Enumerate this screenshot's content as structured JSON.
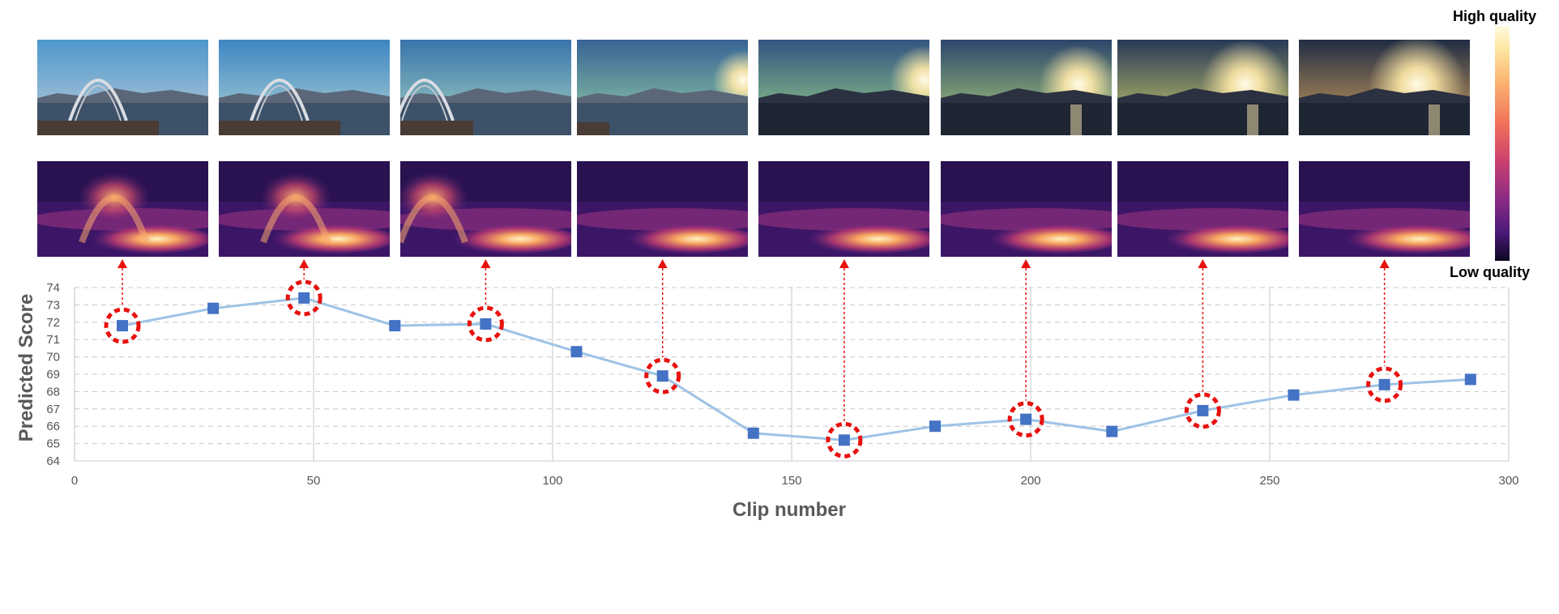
{
  "colorbar": {
    "high_label": "High quality",
    "low_label": "Low quality"
  },
  "chart_data": {
    "type": "line",
    "xlabel": "Clip number",
    "ylabel": "Predicted Score",
    "xlim": [
      0,
      300
    ],
    "ylim": [
      64,
      74
    ],
    "xticks": [
      0,
      50,
      100,
      150,
      200,
      250,
      300
    ],
    "yticks": [
      64,
      65,
      66,
      67,
      68,
      69,
      70,
      71,
      72,
      73,
      74
    ],
    "grid": "horizontal dashed, vertical solid",
    "series": [
      {
        "x": [
          10,
          29,
          48,
          67,
          86,
          105,
          123,
          142,
          161,
          180,
          199,
          217,
          236,
          255,
          274,
          292
        ],
        "y": [
          71.8,
          72.8,
          73.4,
          71.8,
          71.9,
          70.3,
          68.9,
          65.6,
          65.2,
          66.0,
          66.4,
          65.7,
          66.9,
          67.8,
          68.4,
          68.7
        ],
        "line_color": "#9dc3e6",
        "marker_color": "#4472c4"
      }
    ],
    "highlighted_points": [
      0,
      2,
      4,
      6,
      8,
      10,
      12,
      14
    ],
    "highlight_color": "#e8110e"
  }
}
